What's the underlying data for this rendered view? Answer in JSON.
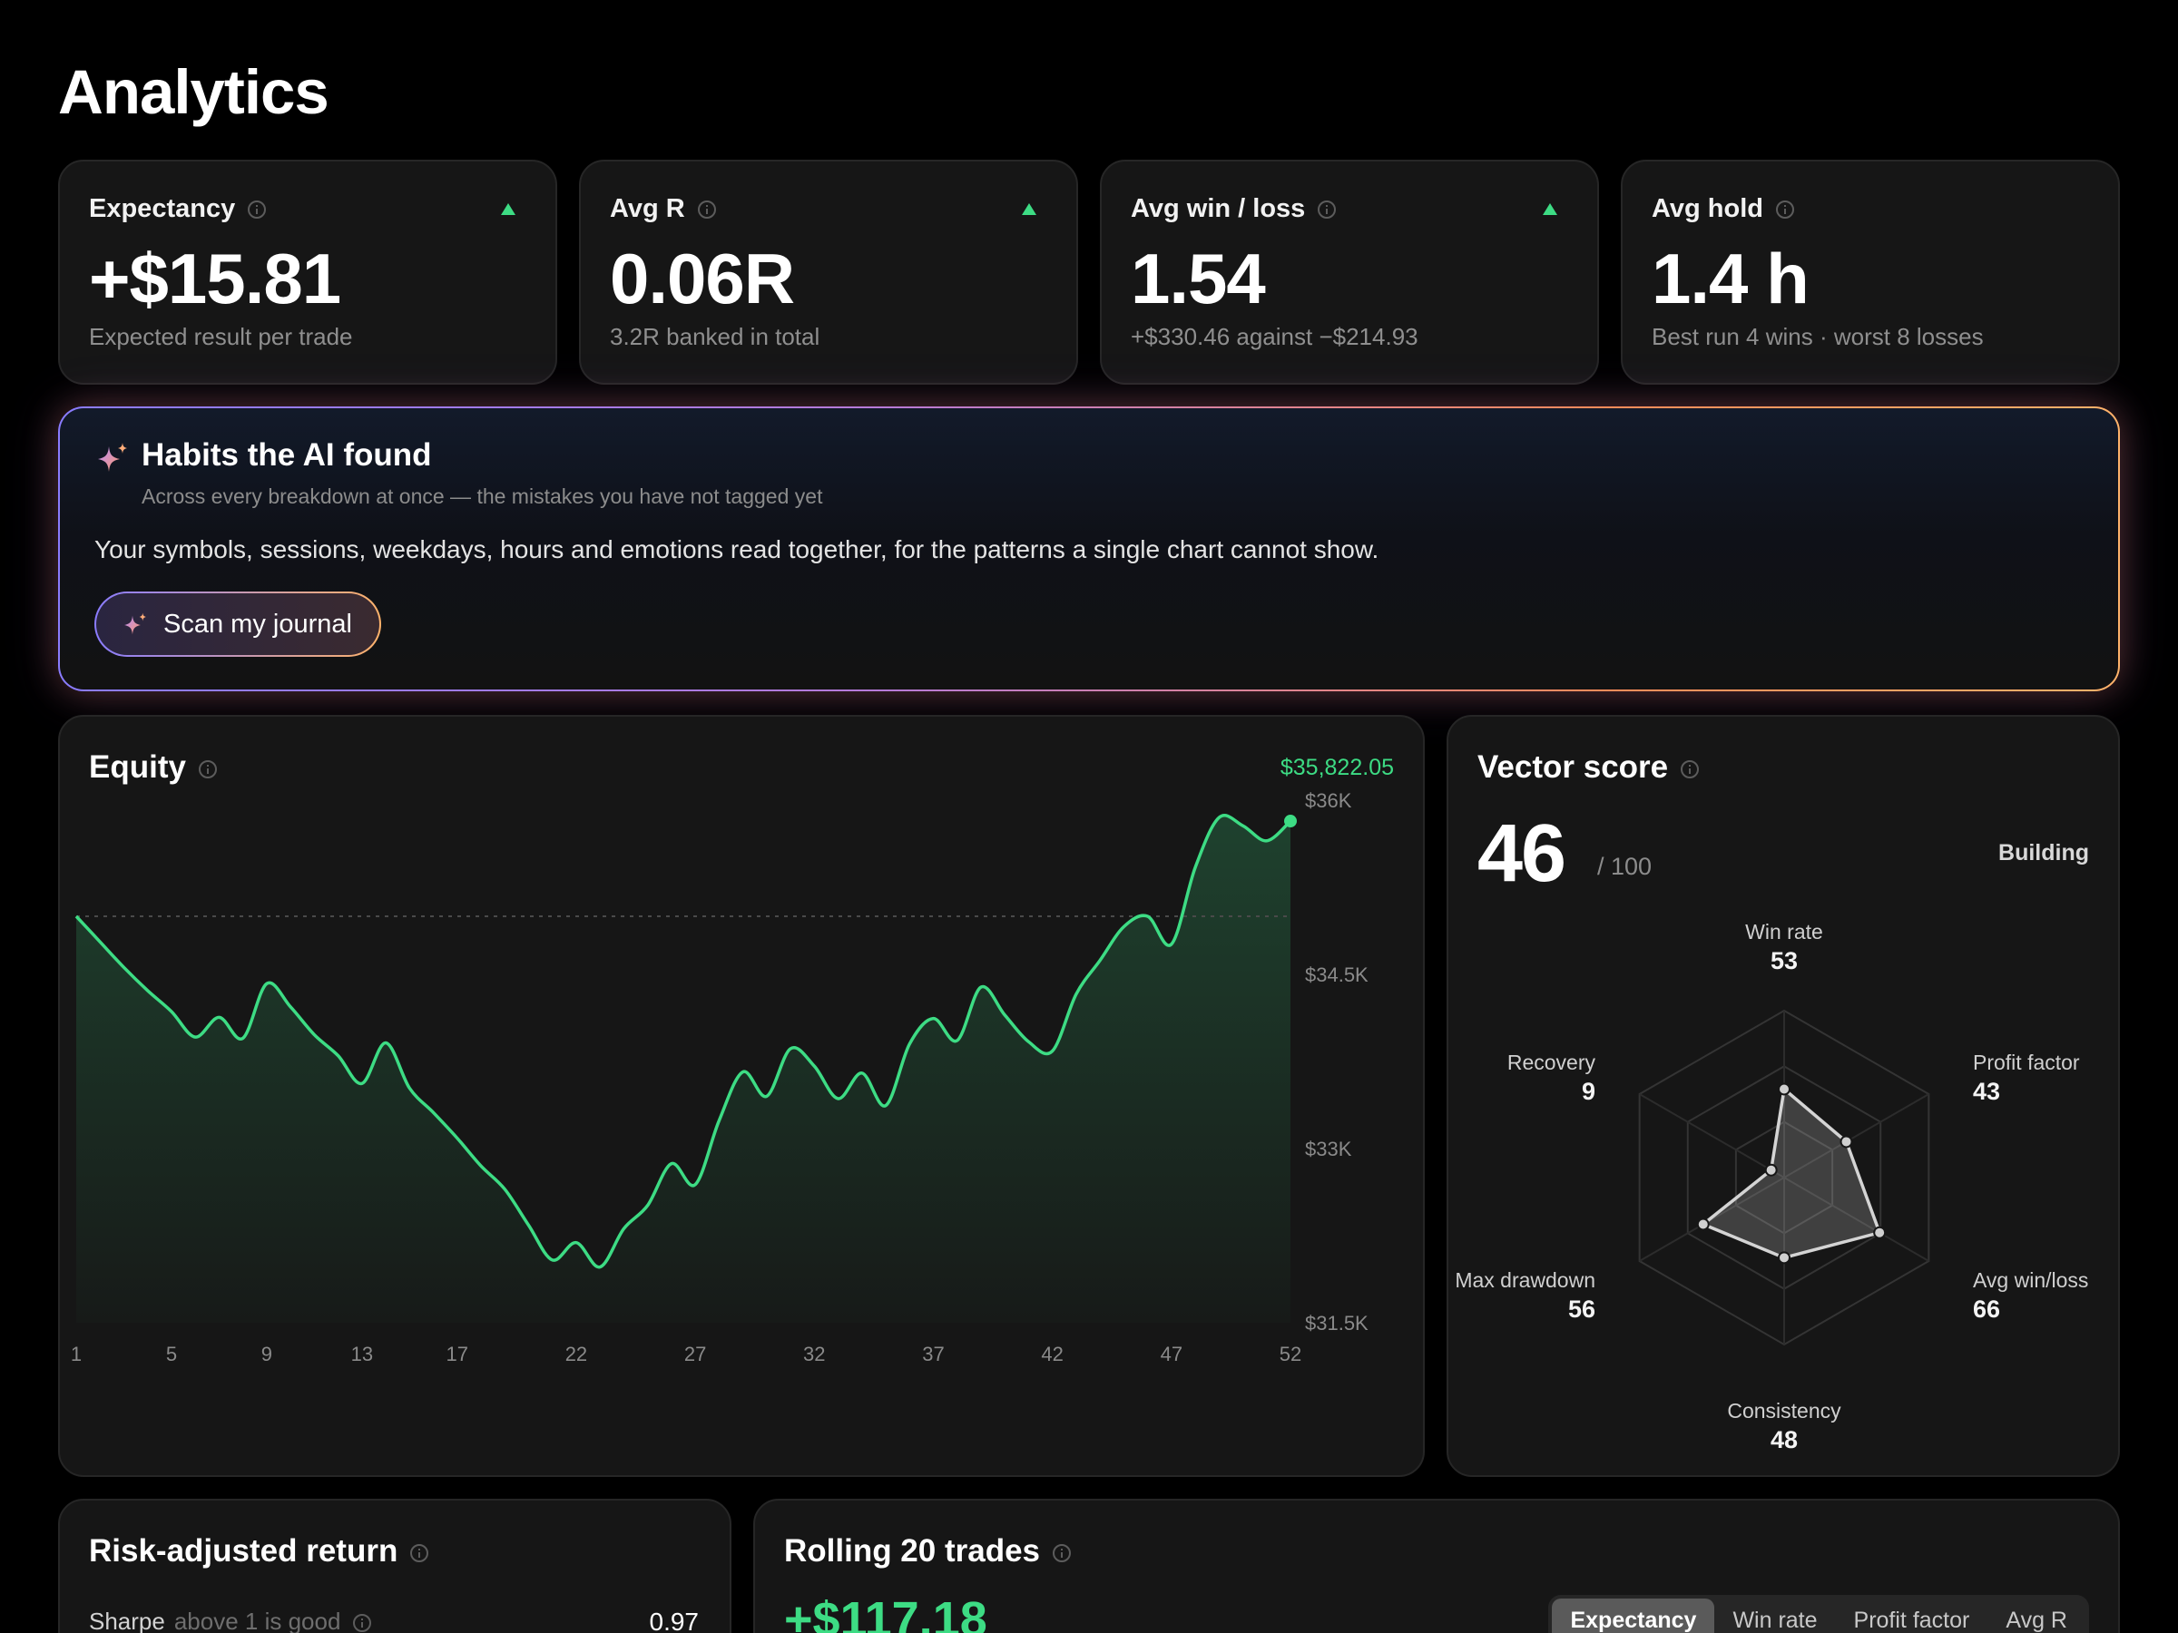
{
  "page": {
    "title": "Analytics"
  },
  "kpis": [
    {
      "label": "Expectancy",
      "value": "+$15.81",
      "sub": "Expected result per trade",
      "trend": "up"
    },
    {
      "label": "Avg R",
      "value": "0.06R",
      "sub": "3.2R banked in total",
      "trend": "up"
    },
    {
      "label": "Avg win / loss",
      "value": "1.54",
      "sub": "+$330.46 against −$214.93",
      "trend": "up"
    },
    {
      "label": "Avg hold",
      "value": "1.4 h",
      "sub": "Best run 4 wins · worst 8 losses",
      "trend": ""
    }
  ],
  "ai": {
    "title": "Habits the AI found",
    "subtitle": "Across every breakdown at once — the mistakes you have not tagged yet",
    "description": "Your symbols, sessions, weekdays, hours and emotions read together, for the patterns a single chart cannot show.",
    "button": "Scan my journal"
  },
  "equity": {
    "title": "Equity",
    "total": "$35,822.05"
  },
  "vector": {
    "title": "Vector score",
    "score": "46",
    "max": "/ 100",
    "status": "Building",
    "axes": [
      {
        "label": "Win rate",
        "value": 53
      },
      {
        "label": "Profit factor",
        "value": 43
      },
      {
        "label": "Avg win/loss",
        "value": 66
      },
      {
        "label": "Consistency",
        "value": 48
      },
      {
        "label": "Max drawdown",
        "value": 56
      },
      {
        "label": "Recovery",
        "value": 9
      }
    ]
  },
  "risk": {
    "title": "Risk-adjusted return",
    "rows": [
      {
        "label": "Sharpe",
        "hint": "above 1 is good",
        "value": "0.97"
      }
    ]
  },
  "rolling": {
    "title": "Rolling 20 trades",
    "value": "+$117.18",
    "tabs": [
      "Expectancy",
      "Win rate",
      "Profit factor",
      "Avg R"
    ],
    "active_tab": "Expectancy"
  },
  "colors": {
    "accent_green": "#3ddc84",
    "card_bg": "#161616",
    "page_bg": "#000000"
  },
  "chart_data": {
    "type": "area",
    "title": "Equity",
    "x_ticks": [
      "1",
      "5",
      "9",
      "13",
      "17",
      "22",
      "27",
      "32",
      "37",
      "42",
      "47",
      "52"
    ],
    "y_ticks": [
      "$36K",
      "$34.5K",
      "$33K",
      "$31.5K"
    ],
    "ylim": [
      31500,
      36000
    ],
    "baseline": 35000,
    "x": [
      1,
      2,
      3,
      4,
      5,
      6,
      7,
      8,
      9,
      10,
      11,
      12,
      13,
      14,
      15,
      16,
      17,
      18,
      19,
      20,
      21,
      22,
      23,
      24,
      25,
      26,
      27,
      28,
      29,
      30,
      31,
      32,
      33,
      34,
      35,
      36,
      37,
      38,
      39,
      40,
      41,
      42,
      43,
      44,
      45,
      46,
      47,
      48,
      49,
      50,
      51,
      52
    ],
    "y": [
      35000,
      34780,
      34560,
      34360,
      34180,
      33960,
      34130,
      33950,
      34420,
      34220,
      33980,
      33800,
      33560,
      33910,
      33520,
      33310,
      33090,
      32850,
      32650,
      32340,
      32040,
      32190,
      31980,
      32310,
      32510,
      32870,
      32690,
      33240,
      33660,
      33450,
      33860,
      33710,
      33430,
      33650,
      33370,
      33900,
      34120,
      33930,
      34390,
      34150,
      33920,
      33840,
      34330,
      34620,
      34910,
      35000,
      34760,
      35420,
      35850,
      35780,
      35650,
      35820
    ],
    "grid": false,
    "legend": "none"
  }
}
